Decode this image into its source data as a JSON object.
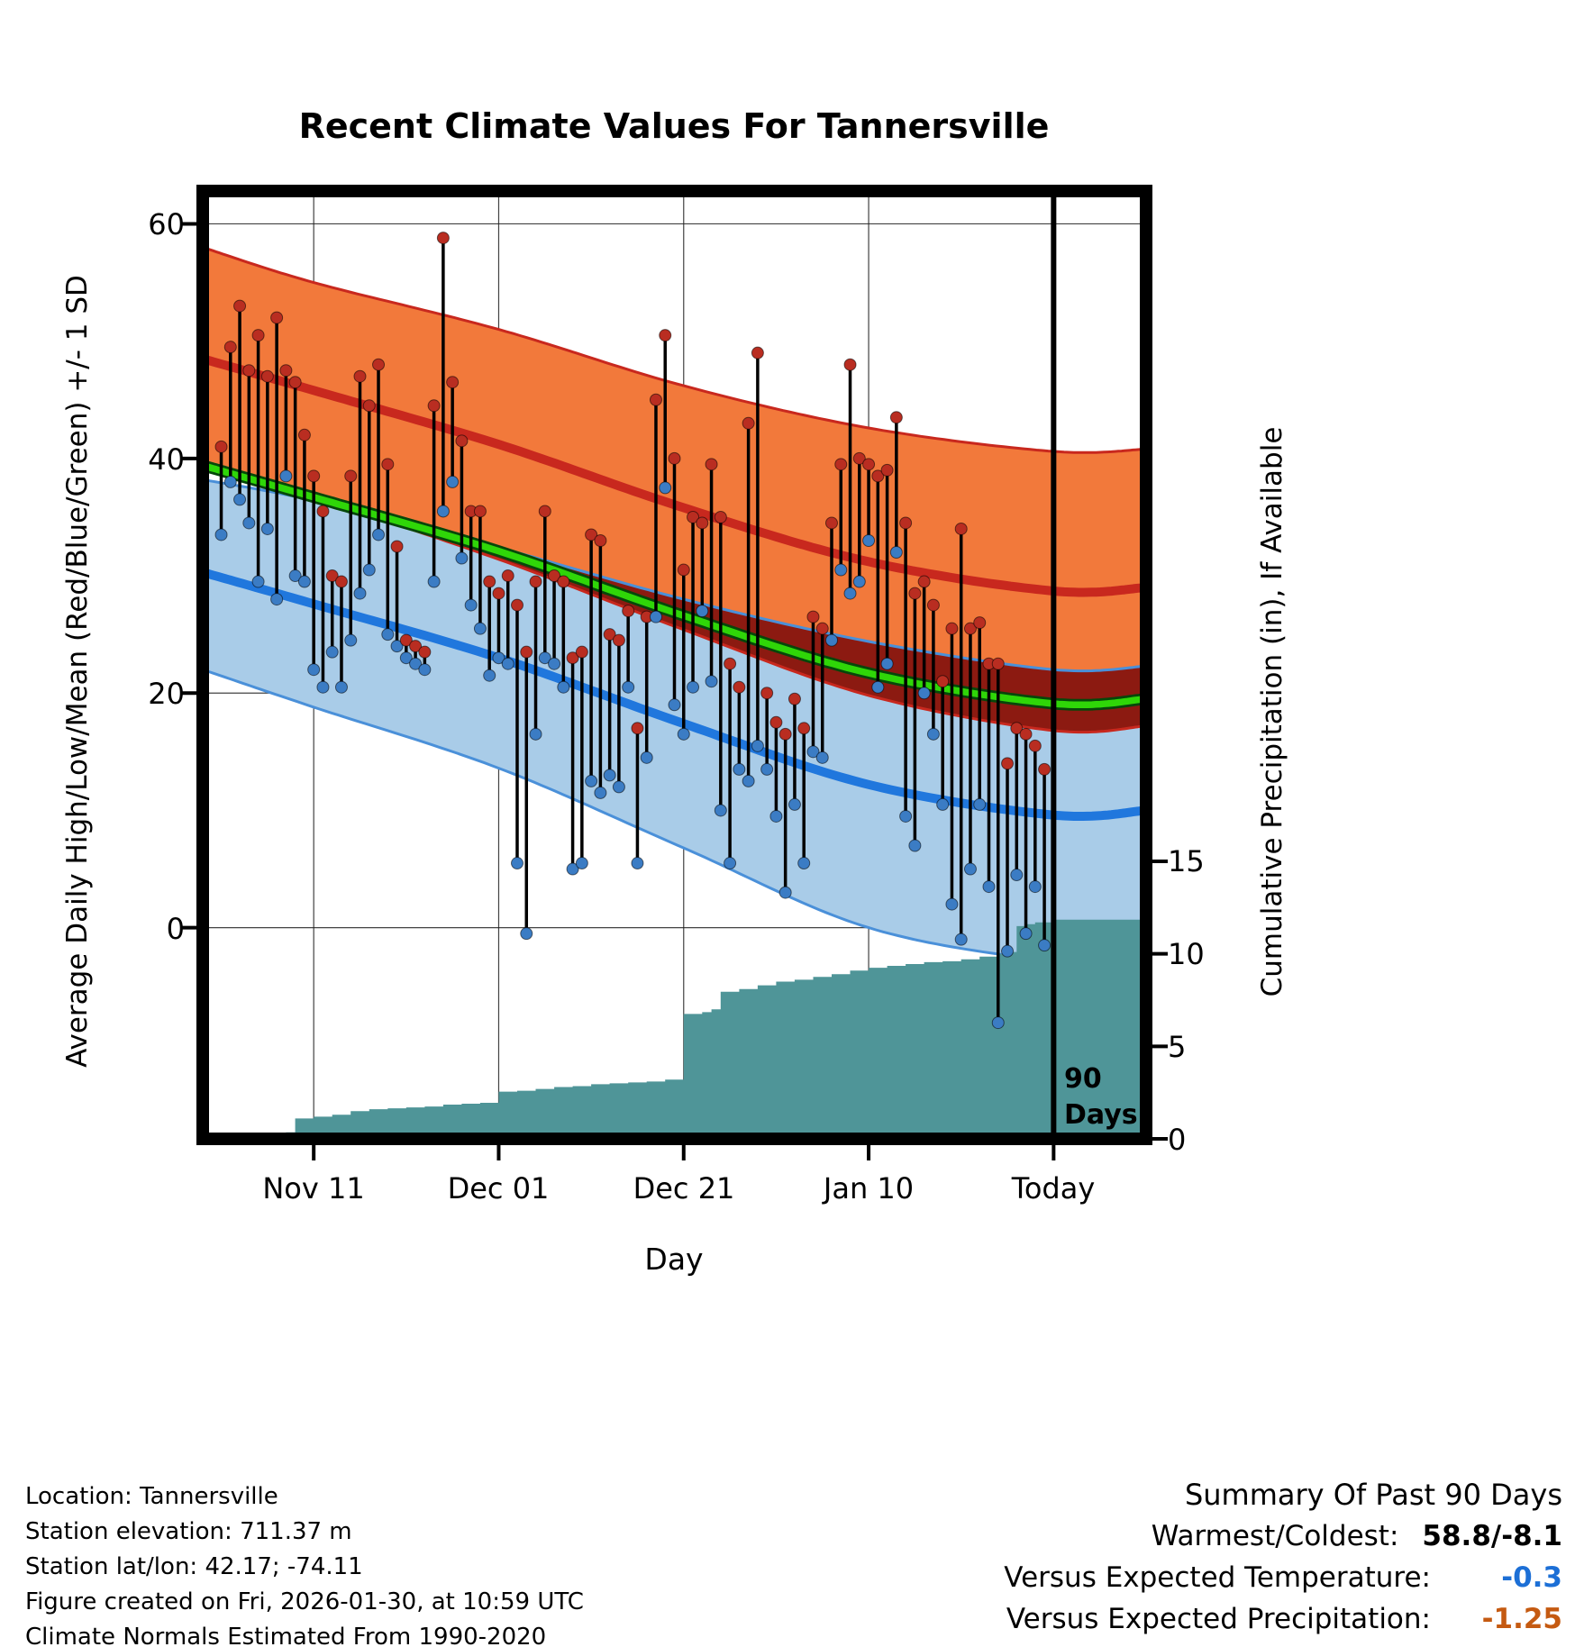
{
  "chart_data": {
    "type": "line",
    "title": "Recent Climate Values For Tannersville",
    "xlabel": "Day",
    "ylabel_left": "Average Daily High/Low/Mean (Red/Blue/Green) +/- 1 SD",
    "ylabel_right": "Cumulative Precipitation (in), If Available",
    "grid": true,
    "x_range_days": [
      -2,
      100
    ],
    "y_range_temp": [
      -18,
      62.8
    ],
    "precip_unit": 1.577,
    "day_index_origin": "Nov 01",
    "today_day": 90,
    "x_ticks": [
      {
        "label": "Nov 11",
        "day": 10
      },
      {
        "label": "Dec 01",
        "day": 30
      },
      {
        "label": "Dec 21",
        "day": 50
      },
      {
        "label": "Jan 10",
        "day": 70
      },
      {
        "label": "Today",
        "day": 90
      }
    ],
    "y_ticks_left": [
      {
        "label": "60",
        "value": 60
      },
      {
        "label": "40",
        "value": 40
      },
      {
        "label": "20",
        "value": 20
      },
      {
        "label": "0",
        "value": 0
      }
    ],
    "y_ticks_right": [
      {
        "label": "15",
        "inches": 15
      },
      {
        "label": "10",
        "inches": 10
      },
      {
        "label": "5",
        "inches": 5
      },
      {
        "label": "0",
        "inches": 0
      }
    ],
    "annotation_90days": [
      "90",
      "Days"
    ],
    "normals": {
      "high_plus": [
        [
          -2,
          58
        ],
        [
          10,
          55
        ],
        [
          30,
          51
        ],
        [
          50,
          46.2
        ],
        [
          70,
          42.6
        ],
        [
          90,
          40.6
        ],
        [
          100,
          40.8
        ]
      ],
      "high_mean": [
        [
          -2,
          48.5
        ],
        [
          10,
          45.8
        ],
        [
          30,
          41.2
        ],
        [
          50,
          35.8
        ],
        [
          70,
          31.2
        ],
        [
          90,
          28.7
        ],
        [
          100,
          29
        ]
      ],
      "high_minus": [
        [
          -2,
          39
        ],
        [
          10,
          36.6
        ],
        [
          30,
          31.4
        ],
        [
          50,
          25.4
        ],
        [
          70,
          19.8
        ],
        [
          90,
          16.8
        ],
        [
          100,
          17.2
        ]
      ],
      "mean": [
        [
          -2,
          39.4
        ],
        [
          10,
          36.7
        ],
        [
          30,
          32.1
        ],
        [
          50,
          26.6
        ],
        [
          70,
          21.7
        ],
        [
          90,
          19.1
        ],
        [
          100,
          19.5
        ]
      ],
      "low_plus": [
        [
          -2,
          38.2
        ],
        [
          10,
          36.4
        ],
        [
          30,
          32.4
        ],
        [
          50,
          28
        ],
        [
          70,
          24.4
        ],
        [
          90,
          22
        ],
        [
          100,
          22.3
        ]
      ],
      "low_mean": [
        [
          -2,
          30.3
        ],
        [
          10,
          27.6
        ],
        [
          30,
          23
        ],
        [
          50,
          17.4
        ],
        [
          70,
          12.2
        ],
        [
          90,
          9.6
        ],
        [
          100,
          10
        ]
      ],
      "low_minus": [
        [
          -2,
          22
        ],
        [
          10,
          18.8
        ],
        [
          30,
          13.6
        ],
        [
          50,
          6.8
        ],
        [
          70,
          0
        ],
        [
          90,
          -2.8
        ],
        [
          100,
          -2.4
        ]
      ]
    },
    "observations_format": [
      "day_index",
      "daily_high_F",
      "daily_low_F"
    ],
    "observations": [
      [
        0,
        41,
        33.5
      ],
      [
        1,
        49.5,
        38
      ],
      [
        2,
        53,
        36.5
      ],
      [
        3,
        47.5,
        34.5
      ],
      [
        4,
        50.5,
        29.5
      ],
      [
        5,
        47,
        34
      ],
      [
        6,
        52,
        28
      ],
      [
        7,
        47.5,
        38.5
      ],
      [
        8,
        46.5,
        30
      ],
      [
        9,
        42,
        29.5
      ],
      [
        10,
        38.5,
        22
      ],
      [
        11,
        35.5,
        20.5
      ],
      [
        12,
        30,
        23.5
      ],
      [
        13,
        29.5,
        20.5
      ],
      [
        14,
        38.5,
        24.5
      ],
      [
        15,
        47,
        28.5
      ],
      [
        16,
        44.5,
        30.5
      ],
      [
        17,
        48,
        33.5
      ],
      [
        18,
        39.5,
        25
      ],
      [
        19,
        32.5,
        24
      ],
      [
        20,
        24.5,
        23
      ],
      [
        21,
        24,
        22.5
      ],
      [
        22,
        23.5,
        22
      ],
      [
        23,
        44.5,
        29.5
      ],
      [
        24,
        58.8,
        35.5
      ],
      [
        25,
        46.5,
        38
      ],
      [
        26,
        41.5,
        31.5
      ],
      [
        27,
        35.5,
        27.5
      ],
      [
        28,
        35.5,
        25.5
      ],
      [
        29,
        29.5,
        21.5
      ],
      [
        30,
        28.5,
        23
      ],
      [
        31,
        30,
        22.5
      ],
      [
        32,
        27.5,
        5.5
      ],
      [
        33,
        23.5,
        -0.5
      ],
      [
        34,
        29.5,
        16.5
      ],
      [
        35,
        35.5,
        23
      ],
      [
        36,
        30,
        22.5
      ],
      [
        37,
        29.5,
        20.5
      ],
      [
        38,
        23,
        5
      ],
      [
        39,
        23.5,
        5.5
      ],
      [
        40,
        33.5,
        12.5
      ],
      [
        41,
        33,
        11.5
      ],
      [
        42,
        25,
        13
      ],
      [
        43,
        24.5,
        12
      ],
      [
        44,
        27,
        20.5
      ],
      [
        45,
        17,
        5.5
      ],
      [
        46,
        26.5,
        14.5
      ],
      [
        47,
        45,
        26.5
      ],
      [
        48,
        50.5,
        37.5
      ],
      [
        49,
        40,
        19
      ],
      [
        50,
        30.5,
        16.5
      ],
      [
        51,
        35,
        20.5
      ],
      [
        52,
        34.5,
        27
      ],
      [
        53,
        39.5,
        21
      ],
      [
        54,
        35,
        10
      ],
      [
        55,
        22.5,
        5.5
      ],
      [
        56,
        20.5,
        13.5
      ],
      [
        57,
        43,
        12.5
      ],
      [
        58,
        49,
        15.5
      ],
      [
        59,
        20,
        13.5
      ],
      [
        60,
        17.5,
        9.5
      ],
      [
        61,
        16.5,
        3
      ],
      [
        62,
        19.5,
        10.5
      ],
      [
        63,
        17,
        5.5
      ],
      [
        64,
        26.5,
        15
      ],
      [
        65,
        25.5,
        14.5
      ],
      [
        66,
        34.5,
        24.5
      ],
      [
        67,
        39.5,
        30.5
      ],
      [
        68,
        48,
        28.5
      ],
      [
        69,
        40,
        29.5
      ],
      [
        70,
        39.5,
        33
      ],
      [
        71,
        38.5,
        20.5
      ],
      [
        72,
        39,
        22.5
      ],
      [
        73,
        43.5,
        32
      ],
      [
        74,
        34.5,
        9.5
      ],
      [
        75,
        28.5,
        7
      ],
      [
        76,
        29.5,
        20
      ],
      [
        77,
        27.5,
        16.5
      ],
      [
        78,
        21,
        10.5
      ],
      [
        79,
        25.5,
        2
      ],
      [
        80,
        34,
        -1
      ],
      [
        81,
        25.5,
        5
      ],
      [
        82,
        26,
        10.5
      ],
      [
        83,
        22.5,
        3.5
      ],
      [
        84,
        22.5,
        -8.1
      ],
      [
        85,
        14,
        -2
      ],
      [
        86,
        17,
        4.5
      ],
      [
        87,
        16.5,
        -0.5
      ],
      [
        88,
        15.5,
        3.5
      ],
      [
        89,
        13.5,
        -1.5
      ]
    ],
    "precip_cumulative": [
      [
        5,
        0
      ],
      [
        7,
        0.35
      ],
      [
        8,
        1.1
      ],
      [
        10,
        1.2
      ],
      [
        12,
        1.3
      ],
      [
        14,
        1.5
      ],
      [
        16,
        1.6
      ],
      [
        18,
        1.65
      ],
      [
        20,
        1.7
      ],
      [
        22,
        1.75
      ],
      [
        24,
        1.85
      ],
      [
        26,
        1.9
      ],
      [
        28,
        1.95
      ],
      [
        30,
        2.55
      ],
      [
        32,
        2.6
      ],
      [
        34,
        2.7
      ],
      [
        36,
        2.8
      ],
      [
        38,
        2.85
      ],
      [
        40,
        2.95
      ],
      [
        42,
        3.0
      ],
      [
        44,
        3.05
      ],
      [
        46,
        3.1
      ],
      [
        48,
        3.2
      ],
      [
        50,
        6.75
      ],
      [
        52,
        6.85
      ],
      [
        53,
        7.0
      ],
      [
        54,
        7.95
      ],
      [
        56,
        8.1
      ],
      [
        58,
        8.3
      ],
      [
        60,
        8.5
      ],
      [
        62,
        8.6
      ],
      [
        64,
        8.75
      ],
      [
        66,
        8.9
      ],
      [
        68,
        9.1
      ],
      [
        70,
        9.25
      ],
      [
        72,
        9.35
      ],
      [
        74,
        9.45
      ],
      [
        76,
        9.55
      ],
      [
        78,
        9.6
      ],
      [
        80,
        9.7
      ],
      [
        82,
        9.85
      ],
      [
        84,
        10.0
      ],
      [
        85,
        10.1
      ],
      [
        86,
        11.5
      ],
      [
        87,
        11.6
      ],
      [
        88,
        11.7
      ],
      [
        90,
        11.85
      ],
      [
        100,
        11.9
      ]
    ]
  },
  "colors": {
    "orange_band": "#F2793B",
    "maroon_band": "#8C1A11",
    "blue_band": "#A9CCE8",
    "red_line": "#C8281E",
    "blue_edge": "#4A90D9",
    "blue_line": "#2077DD",
    "green_line": "#2FD608",
    "green_edge": "#06470A",
    "teal_precip": "#4F9598",
    "dot_red": "#B92D21",
    "dot_blue": "#3B7CC4",
    "obs_line": "#000000",
    "grid": "#222222",
    "frame": "#000000",
    "value_temp": "#1C6FD6",
    "value_precip": "#C55A11"
  },
  "footer": {
    "lines": [
      "Location: Tannersville",
      "Station elevation: 711.37 m",
      "Station lat/lon: 42.17; -74.11",
      "Figure created on Fri, 2026-01-30, at 10:59 UTC",
      "Climate Normals Estimated From 1990-2020"
    ]
  },
  "summary": {
    "heading": "Summary Of Past 90 Days",
    "rows": [
      {
        "label": "Warmest/Coldest:",
        "value": "58.8/-8.1"
      },
      {
        "label": "Versus Expected Temperature:",
        "value": "-0.3"
      },
      {
        "label": "Versus Expected Precipitation:",
        "value": "-1.25"
      }
    ]
  }
}
